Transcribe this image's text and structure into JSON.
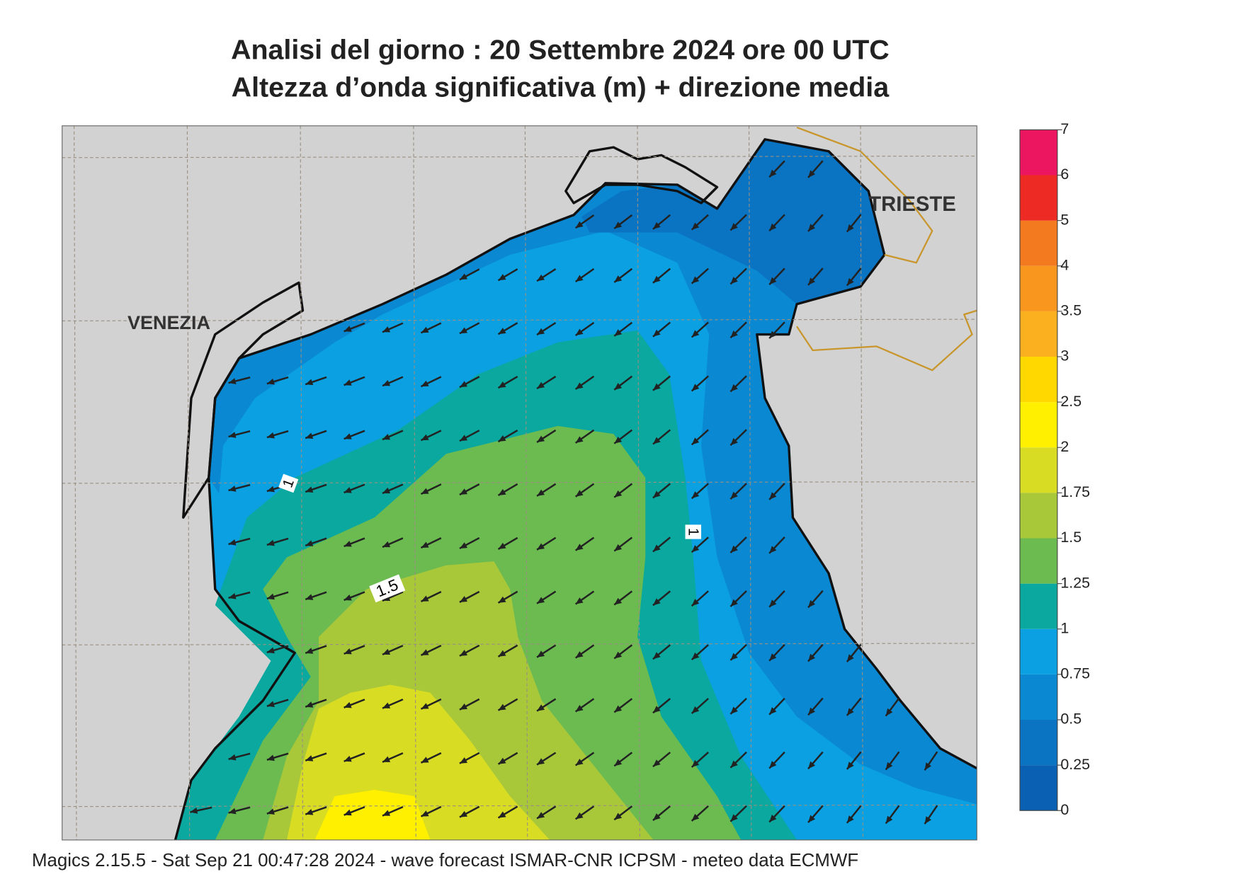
{
  "title": "Analisi del giorno :  20 Settembre 2024   ore 00 UTC",
  "subtitle": "Altezza d’onda significativa (m) + direzione media",
  "places": [
    "VENEZIA",
    "TRIESTE"
  ],
  "contour_labels": [
    1,
    1,
    1.5
  ],
  "colorbar": {
    "levels": [
      0,
      0.25,
      0.5,
      0.75,
      1,
      1.25,
      1.5,
      1.75,
      2,
      2.5,
      3,
      3.5,
      4,
      5,
      6,
      7
    ],
    "colors": [
      "#0a60b2",
      "#0a74c2",
      "#0a88d2",
      "#0aa0e2",
      "#0aa89e",
      "#6cbb50",
      "#a8c83a",
      "#d8dc22",
      "#fff000",
      "#ffd800",
      "#fbb020",
      "#f8961e",
      "#f47a20",
      "#ee2a24",
      "#ec1660"
    ]
  },
  "footer": "Magics 2.15.5 - Sat Sep 21 00:47:28 2024 - wave forecast  ISMAR-CNR  ICPSM - meteo data    ECMWF"
}
